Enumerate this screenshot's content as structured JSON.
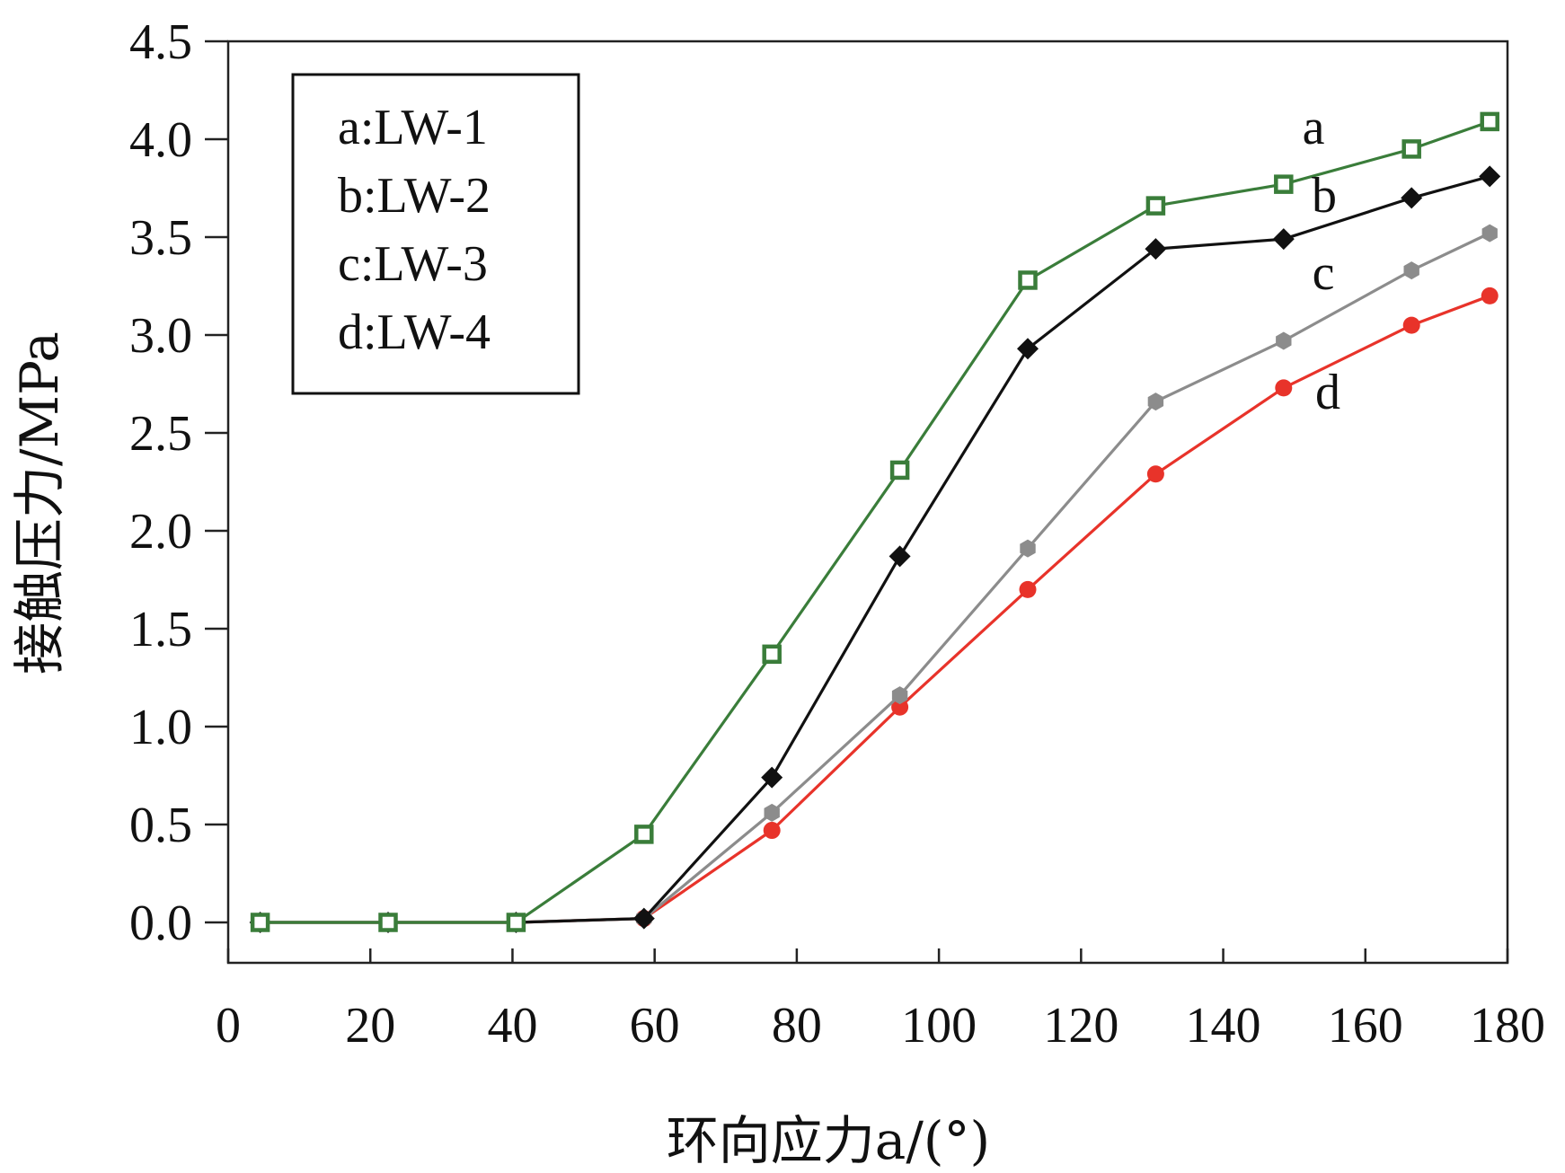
{
  "chart_data": {
    "type": "line",
    "xlabel": "环向应力a/(°)",
    "ylabel": "接触压力/MPa",
    "xlim": [
      0,
      180
    ],
    "ylim": [
      0,
      4.5
    ],
    "x_ticks": [
      "0",
      "20",
      "40",
      "60",
      "80",
      "100",
      "120",
      "140",
      "160",
      "180"
    ],
    "y_ticks": [
      "0.0",
      "0.5",
      "1.0",
      "1.5",
      "2.0",
      "2.5",
      "3.0",
      "3.5",
      "4.0",
      "4.5"
    ],
    "x": [
      4.5,
      22.5,
      40.5,
      58.5,
      76.5,
      94.5,
      112.5,
      130.5,
      148.5,
      166.5,
      177.5
    ],
    "legend": {
      "position": "top-left",
      "entries": [
        "a:LW-1",
        "b:LW-2",
        "c:LW-3",
        "d:LW-4"
      ]
    },
    "series": [
      {
        "name": "a:LW-1",
        "label": "a",
        "color": "#3a7d3a",
        "marker": "square",
        "values": [
          0.0,
          0.0,
          0.0,
          0.45,
          1.37,
          2.31,
          3.28,
          3.66,
          3.77,
          3.95,
          4.09
        ]
      },
      {
        "name": "b:LW-2",
        "label": "b",
        "color": "#111111",
        "marker": "diamond",
        "values": [
          0.0,
          0.0,
          0.0,
          0.02,
          0.74,
          1.87,
          2.93,
          3.44,
          3.49,
          3.7,
          3.81
        ]
      },
      {
        "name": "c:LW-3",
        "label": "c",
        "color": "#8c8c8c",
        "marker": "hexagon",
        "values": [
          0.0,
          0.0,
          0.0,
          0.02,
          0.56,
          1.16,
          1.91,
          2.66,
          2.97,
          3.33,
          3.52
        ]
      },
      {
        "name": "d:LW-4",
        "label": "d",
        "color": "#e8332a",
        "marker": "circle",
        "values": [
          0.0,
          0.0,
          0.0,
          0.02,
          0.47,
          1.1,
          1.7,
          2.29,
          2.73,
          3.05,
          3.2
        ]
      }
    ]
  }
}
